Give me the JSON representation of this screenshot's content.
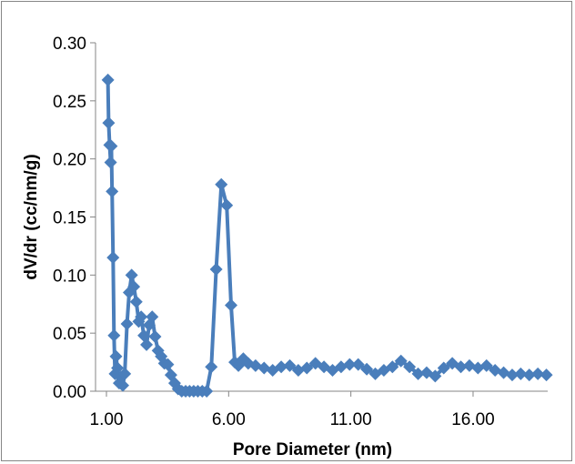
{
  "chart_data": {
    "type": "line",
    "title": "",
    "xlabel": "Pore Diameter (nm)",
    "ylabel": "dV/dr (cc/nm/g)",
    "xlim": [
      1.0,
      19.5
    ],
    "ylim": [
      0.0,
      0.3
    ],
    "xticks": [
      1.0,
      6.0,
      11.0,
      16.0
    ],
    "xtick_labels": [
      "1.00",
      "6.00",
      "11.00",
      "16.00"
    ],
    "yticks": [
      0.0,
      0.05,
      0.1,
      0.15,
      0.2,
      0.25,
      0.3
    ],
    "ytick_labels": [
      "0.00",
      "0.05",
      "0.10",
      "0.15",
      "0.20",
      "0.25",
      "0.30"
    ],
    "grid": false,
    "legend": "none",
    "marker": "diamond",
    "color": "#4a7ebb",
    "series": [
      {
        "x": [
          1.06,
          1.09,
          1.13,
          1.17,
          1.2,
          1.23,
          1.27,
          1.31,
          1.35,
          1.39,
          1.45,
          1.52,
          1.59,
          1.67,
          1.75,
          1.84,
          1.93,
          2.03,
          2.12,
          2.22,
          2.32,
          2.42,
          2.53,
          2.64,
          2.75,
          2.87,
          2.99,
          3.11,
          3.24,
          3.37,
          3.51,
          3.64,
          3.79,
          3.93,
          4.08,
          4.24,
          4.4,
          4.57,
          4.74,
          4.92,
          5.1,
          5.29,
          5.49,
          5.7,
          5.92,
          6.1,
          6.25,
          6.4,
          6.6,
          6.8,
          7.1,
          7.45,
          7.8,
          8.15,
          8.5,
          8.85,
          9.2,
          9.55,
          9.9,
          10.25,
          10.6,
          10.95,
          11.3,
          11.65,
          12.0,
          12.35,
          12.7,
          13.05,
          13.4,
          13.75,
          14.1,
          14.45,
          14.8,
          15.15,
          15.5,
          15.85,
          16.2,
          16.55,
          16.9,
          17.25,
          17.6,
          17.95,
          18.3,
          18.65,
          19.0
        ],
        "y": [
          0.268,
          0.231,
          0.212,
          0.197,
          0.211,
          0.172,
          0.115,
          0.048,
          0.015,
          0.03,
          0.02,
          0.007,
          0.012,
          0.005,
          0.015,
          0.058,
          0.085,
          0.1,
          0.09,
          0.077,
          0.06,
          0.064,
          0.048,
          0.04,
          0.057,
          0.064,
          0.047,
          0.035,
          0.03,
          0.024,
          0.023,
          0.014,
          0.007,
          0.002,
          0.0,
          0.0,
          0.0,
          0.0,
          0.0,
          0.0,
          0.0,
          0.021,
          0.105,
          0.178,
          0.16,
          0.074,
          0.025,
          0.022,
          0.028,
          0.024,
          0.022,
          0.02,
          0.018,
          0.021,
          0.022,
          0.018,
          0.02,
          0.024,
          0.021,
          0.018,
          0.021,
          0.023,
          0.023,
          0.019,
          0.015,
          0.018,
          0.021,
          0.026,
          0.021,
          0.015,
          0.016,
          0.013,
          0.02,
          0.024,
          0.021,
          0.022,
          0.02,
          0.022,
          0.018,
          0.016,
          0.014,
          0.015,
          0.014,
          0.015,
          0.014
        ]
      }
    ]
  }
}
